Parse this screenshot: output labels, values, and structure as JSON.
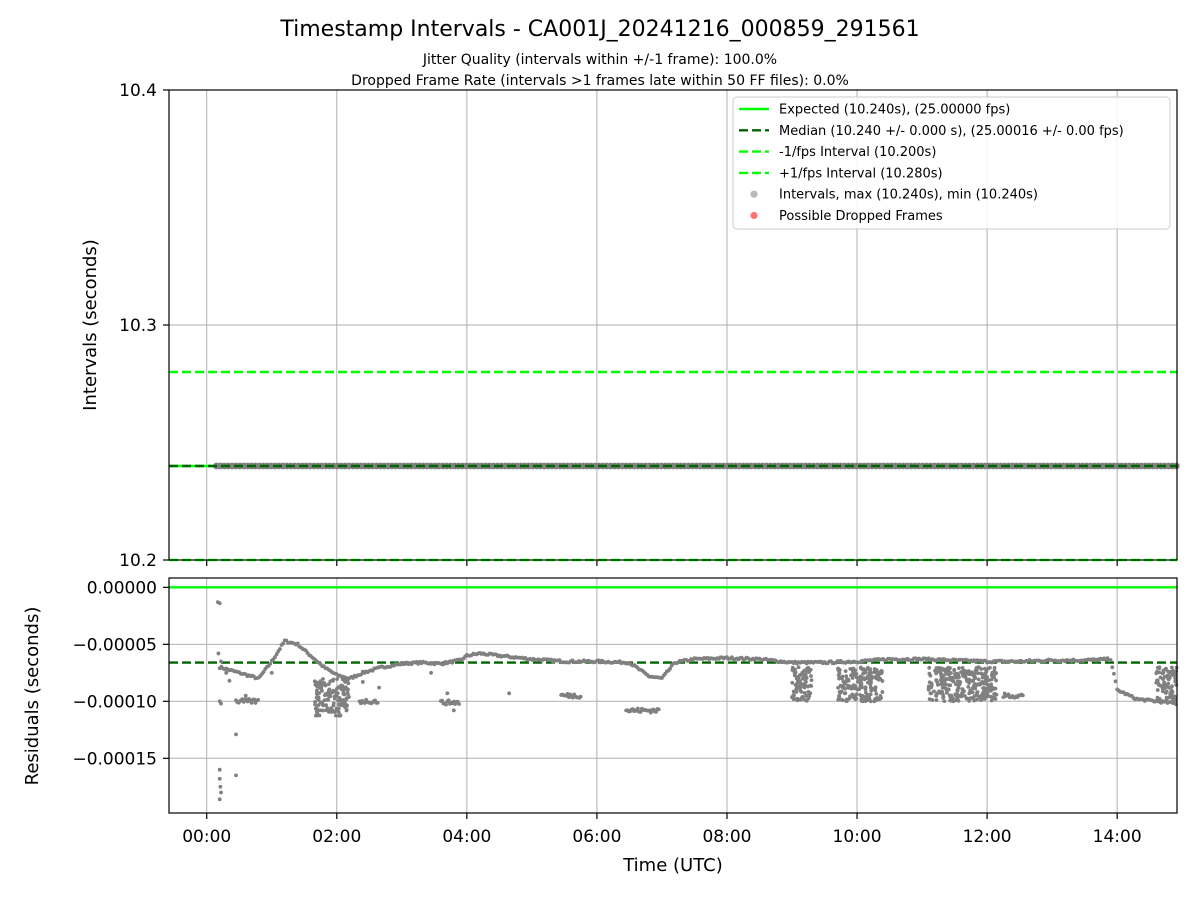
{
  "title": "Timestamp Intervals - CA001J_20241216_000859_291561",
  "subtitle_1": "Jitter Quality (intervals within +/-1 frame): 100.0%",
  "subtitle_2": "Dropped Frame Rate (intervals >1 frames late within 50 FF files): 0.0%",
  "colors": {
    "expected": "#00ff00",
    "median": "#006400",
    "bound": "#00ff00",
    "points": "#808080",
    "dropped": "#ff0000",
    "grid": "#b0b0b0"
  },
  "chart_data": [
    {
      "type": "scatter",
      "ylabel": "Intervals (seconds)",
      "ylim": [
        10.2,
        10.4
      ],
      "yticks": [
        "10.2",
        "10.3",
        "10.4"
      ],
      "xlim_hours": [
        -0.58,
        14.92
      ],
      "grid": true,
      "legend_placement": "top-right",
      "lines": [
        {
          "name": "Expected (10.240s), (25.00000 fps)",
          "y": 10.24,
          "style": "solid",
          "color": "#00ff00"
        },
        {
          "name": "Median (10.240 +/- 0.000 s), (25.00016 +/- 0.00 fps)",
          "y": 10.24,
          "style": "dashed",
          "color": "#006400"
        },
        {
          "name": "-1/fps Interval (10.200s)",
          "y": 10.2,
          "style": "dashed",
          "color": "#00ff00"
        },
        {
          "name": "+1/fps Interval (10.280s)",
          "y": 10.28,
          "style": "dashed",
          "color": "#00ff00"
        }
      ],
      "series": [
        {
          "name": "Intervals, max (10.240s), min (10.240s)",
          "x_range_hours": [
            0.15,
            14.92
          ],
          "y": 10.24,
          "color": "#808080"
        },
        {
          "name": "Possible Dropped Frames",
          "points": [],
          "color": "#ff0000"
        }
      ]
    },
    {
      "type": "scatter",
      "ylabel": "Residuals (seconds)",
      "xlabel": "Time (UTC)",
      "ylim": [
        -0.000198,
        8.2e-06
      ],
      "yticks": [
        "0.00000",
        "−0.00005",
        "−0.00010",
        "−0.00015"
      ],
      "xticks": [
        "00:00",
        "02:00",
        "04:00",
        "06:00",
        "08:00",
        "10:00",
        "12:00",
        "14:00"
      ],
      "xlim_hours": [
        -0.58,
        14.92
      ],
      "grid": true,
      "lines": [
        {
          "y": 0.0,
          "style": "solid",
          "color": "#00ff00"
        },
        {
          "y": -6.6e-05,
          "style": "dashed",
          "color": "#006400"
        }
      ],
      "residual_trend": [
        [
          0.2,
          -7e-05
        ],
        [
          0.5,
          -7.5e-05
        ],
        [
          0.8,
          -8e-05
        ],
        [
          1.0,
          -6.5e-05
        ],
        [
          1.2,
          -4.7e-05
        ],
        [
          1.4,
          -5e-05
        ],
        [
          1.6,
          -6e-05
        ],
        [
          1.8,
          -7e-05
        ],
        [
          2.0,
          -7.7e-05
        ],
        [
          2.2,
          -8e-05
        ],
        [
          2.4,
          -7.5e-05
        ],
        [
          2.7,
          -7e-05
        ],
        [
          3.0,
          -6.7e-05
        ],
        [
          3.3,
          -6.6e-05
        ],
        [
          3.6,
          -6.7e-05
        ],
        [
          3.9,
          -6.4e-05
        ],
        [
          4.0,
          -6e-05
        ],
        [
          4.2,
          -5.8e-05
        ],
        [
          4.5,
          -6e-05
        ],
        [
          5.0,
          -6.3e-05
        ],
        [
          5.5,
          -6.5e-05
        ],
        [
          6.0,
          -6.5e-05
        ],
        [
          6.5,
          -6.6e-05
        ],
        [
          6.8,
          -7.8e-05
        ],
        [
          7.0,
          -8e-05
        ],
        [
          7.2,
          -6.6e-05
        ],
        [
          7.5,
          -6.3e-05
        ],
        [
          8.0,
          -6.2e-05
        ],
        [
          8.5,
          -6.3e-05
        ],
        [
          9.0,
          -6.6e-05
        ],
        [
          9.5,
          -6.6e-05
        ],
        [
          10.0,
          -6.5e-05
        ],
        [
          10.5,
          -6.3e-05
        ],
        [
          11.0,
          -6.3e-05
        ],
        [
          11.5,
          -6.4e-05
        ],
        [
          12.0,
          -6.5e-05
        ],
        [
          12.5,
          -6.5e-05
        ],
        [
          13.0,
          -6.4e-05
        ],
        [
          13.5,
          -6.4e-05
        ],
        [
          13.9,
          -6.3e-05
        ],
        [
          14.0,
          -9e-05
        ],
        [
          14.3,
          -9.8e-05
        ],
        [
          14.92,
          -0.000102
        ]
      ],
      "residual_scatter_bands": [
        {
          "from_hours": 9.0,
          "to_hours": 9.3,
          "ymin": -0.0001,
          "ymax": -7e-05
        },
        {
          "from_hours": 9.7,
          "to_hours": 10.4,
          "ymin": -0.0001,
          "ymax": -7e-05
        },
        {
          "from_hours": 11.1,
          "to_hours": 12.15,
          "ymin": -0.0001,
          "ymax": -7e-05
        },
        {
          "from_hours": 14.6,
          "to_hours": 14.92,
          "ymin": -0.0001,
          "ymax": -7e-05
        },
        {
          "from_hours": 1.65,
          "to_hours": 2.2,
          "ymin": -0.000113,
          "ymax": -8e-05
        }
      ],
      "residual_low_segments": [
        {
          "from_hours": 0.45,
          "to_hours": 0.8,
          "y": -0.0001
        },
        {
          "from_hours": 2.35,
          "to_hours": 2.65,
          "y": -0.0001
        },
        {
          "from_hours": 3.6,
          "to_hours": 3.9,
          "y": -0.000101
        },
        {
          "from_hours": 5.45,
          "to_hours": 5.75,
          "y": -9.5e-05
        },
        {
          "from_hours": 6.45,
          "to_hours": 6.95,
          "y": -0.000108
        },
        {
          "from_hours": 12.25,
          "to_hours": 12.55,
          "y": -9.5e-05
        }
      ],
      "residual_outliers": [
        [
          0.17,
          -1.3e-05
        ],
        [
          0.2,
          -1.4e-05
        ],
        [
          0.18,
          -5.8e-05
        ],
        [
          0.22,
          -6.5e-05
        ],
        [
          0.2,
          -0.0001
        ],
        [
          0.22,
          -0.000102
        ],
        [
          0.2,
          -0.00016
        ],
        [
          0.2,
          -0.000168
        ],
        [
          0.21,
          -0.000175
        ],
        [
          0.22,
          -0.00018
        ],
        [
          0.2,
          -0.000186
        ],
        [
          0.45,
          -0.000129
        ],
        [
          0.45,
          -0.000165
        ],
        [
          0.35,
          -8.2e-05
        ],
        [
          0.3,
          -7.5e-05
        ],
        [
          0.6,
          -9.5e-05
        ],
        [
          1.0,
          -7.5e-05
        ],
        [
          2.4,
          -8.3e-05
        ],
        [
          2.65,
          -8.8e-05
        ],
        [
          3.7,
          -9.3e-05
        ],
        [
          3.8,
          -0.000108
        ],
        [
          3.45,
          -7.5e-05
        ],
        [
          4.65,
          -9.3e-05
        ]
      ]
    }
  ],
  "legend": [
    {
      "label": "Expected (10.240s), (25.00000 fps)",
      "kind": "solid",
      "color": "#00ff00"
    },
    {
      "label": "Median (10.240 +/- 0.000 s), (25.00016 +/- 0.00 fps)",
      "kind": "dashed",
      "color": "#006400"
    },
    {
      "label": "-1/fps Interval (10.200s)",
      "kind": "dashed",
      "color": "#00ff00"
    },
    {
      "label": "+1/fps Interval (10.280s)",
      "kind": "dashed",
      "color": "#00ff00"
    },
    {
      "label": "Intervals, max (10.240s), min (10.240s)",
      "kind": "dot",
      "color": "#808080"
    },
    {
      "label": "Possible Dropped Frames",
      "kind": "dot",
      "color": "#ff0000"
    }
  ]
}
